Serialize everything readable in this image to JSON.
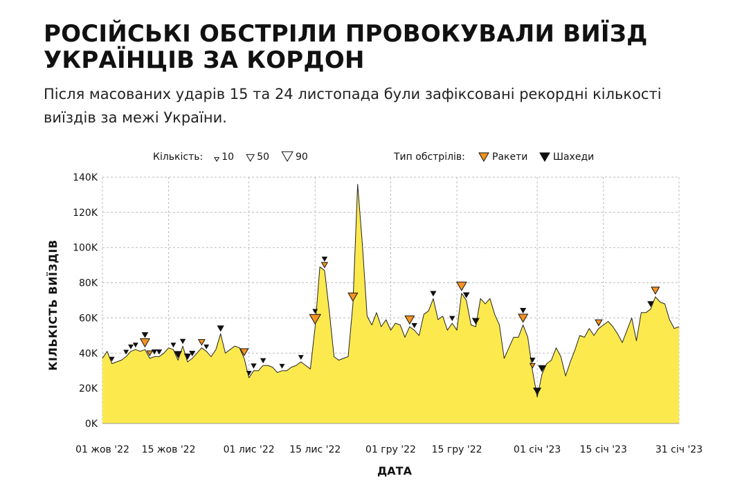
{
  "header": {
    "title": "РОСІЙСЬКІ ОБСТРІЛИ ПРОВОКУВАЛИ ВИЇЗД УКРАЇНЦІВ ЗА КОРДОН",
    "subtitle": "Після масованих ударів 15 та 24 листопада були зафіксовані рекордні кількості виїздів за межі України."
  },
  "legend": {
    "size_label": "Кількість:",
    "size_items": [
      {
        "label": "10",
        "value": 10
      },
      {
        "label": "50",
        "value": 50
      },
      {
        "label": "90",
        "value": 90
      }
    ],
    "type_label": "Тип обстрілів:",
    "type_items": [
      {
        "label": "Ракети",
        "key": "missiles"
      },
      {
        "label": "Шахеди",
        "key": "shaheds"
      }
    ]
  },
  "colors": {
    "area_fill": "#fce94e",
    "area_line": "#222222",
    "grid": "#bbbbbb",
    "missiles": "#f29322",
    "shaheds": "#111111",
    "marker_stroke": "#111111",
    "text": "#111111"
  },
  "chart_data": {
    "type": "area",
    "title": "",
    "xlabel": "ДАТА",
    "ylabel": "КІЛЬКІСТЬ ВИЇЗДІВ",
    "ylim": [
      0,
      140000
    ],
    "yticks": [
      0,
      20000,
      40000,
      60000,
      80000,
      100000,
      120000,
      140000
    ],
    "ytick_labels": [
      "0K",
      "20K",
      "40K",
      "60K",
      "80K",
      "100K",
      "120K",
      "140K"
    ],
    "xlim": [
      "2022-10-01",
      "2023-01-31"
    ],
    "xticks": [
      "2022-10-01",
      "2022-10-15",
      "2022-11-01",
      "2022-11-15",
      "2022-12-01",
      "2022-12-15",
      "2023-01-01",
      "2023-01-15",
      "2023-01-31"
    ],
    "xtick_labels": [
      "01 жов '22",
      "15 жов '22",
      "01 лис '22",
      "15 лис '22",
      "01 гру '22",
      "15 гру '22",
      "01 січ '23",
      "15 січ '23",
      "31 січ '23"
    ],
    "grid": true,
    "series": [
      {
        "points": [
          [
            "2022-10-01",
            37000
          ],
          [
            "2022-10-02",
            41000
          ],
          [
            "2022-10-03",
            34000
          ],
          [
            "2022-10-04",
            35000
          ],
          [
            "2022-10-05",
            36000
          ],
          [
            "2022-10-06",
            38000
          ],
          [
            "2022-10-07",
            41000
          ],
          [
            "2022-10-08",
            42000
          ],
          [
            "2022-10-09",
            41000
          ],
          [
            "2022-10-10",
            42000
          ],
          [
            "2022-10-11",
            37000
          ],
          [
            "2022-10-12",
            38000
          ],
          [
            "2022-10-13",
            38000
          ],
          [
            "2022-10-14",
            40000
          ],
          [
            "2022-10-15",
            43000
          ],
          [
            "2022-10-16",
            42000
          ],
          [
            "2022-10-17",
            36000
          ],
          [
            "2022-10-18",
            44000
          ],
          [
            "2022-10-19",
            35000
          ],
          [
            "2022-10-20",
            37000
          ],
          [
            "2022-10-21",
            40000
          ],
          [
            "2022-10-22",
            43000
          ],
          [
            "2022-10-23",
            41000
          ],
          [
            "2022-10-24",
            38000
          ],
          [
            "2022-10-25",
            42000
          ],
          [
            "2022-10-26",
            51000
          ],
          [
            "2022-10-27",
            40000
          ],
          [
            "2022-10-28",
            42000
          ],
          [
            "2022-10-29",
            44000
          ],
          [
            "2022-10-30",
            43000
          ],
          [
            "2022-10-31",
            37000
          ],
          [
            "2022-11-01",
            26000
          ],
          [
            "2022-11-02",
            30000
          ],
          [
            "2022-11-03",
            30000
          ],
          [
            "2022-11-04",
            33000
          ],
          [
            "2022-11-05",
            33000
          ],
          [
            "2022-11-06",
            32000
          ],
          [
            "2022-11-07",
            29000
          ],
          [
            "2022-11-08",
            30000
          ],
          [
            "2022-11-09",
            30000
          ],
          [
            "2022-11-10",
            32000
          ],
          [
            "2022-11-11",
            33000
          ],
          [
            "2022-11-12",
            35000
          ],
          [
            "2022-11-13",
            33000
          ],
          [
            "2022-11-14",
            31000
          ],
          [
            "2022-11-15",
            55000
          ],
          [
            "2022-11-16",
            89000
          ],
          [
            "2022-11-17",
            87000
          ],
          [
            "2022-11-18",
            64000
          ],
          [
            "2022-11-19",
            38000
          ],
          [
            "2022-11-20",
            36000
          ],
          [
            "2022-11-21",
            37000
          ],
          [
            "2022-11-22",
            38000
          ],
          [
            "2022-11-23",
            68000
          ],
          [
            "2022-11-24",
            136000
          ],
          [
            "2022-11-25",
            102000
          ],
          [
            "2022-11-26",
            61000
          ],
          [
            "2022-11-27",
            56000
          ],
          [
            "2022-11-28",
            63000
          ],
          [
            "2022-11-29",
            55000
          ],
          [
            "2022-11-30",
            59000
          ],
          [
            "2022-12-01",
            53000
          ],
          [
            "2022-12-02",
            57000
          ],
          [
            "2022-12-03",
            56000
          ],
          [
            "2022-12-04",
            49000
          ],
          [
            "2022-12-05",
            55000
          ],
          [
            "2022-12-06",
            53000
          ],
          [
            "2022-12-07",
            50000
          ],
          [
            "2022-12-08",
            62000
          ],
          [
            "2022-12-09",
            64000
          ],
          [
            "2022-12-10",
            71000
          ],
          [
            "2022-12-11",
            59000
          ],
          [
            "2022-12-12",
            61000
          ],
          [
            "2022-12-13",
            53000
          ],
          [
            "2022-12-14",
            57000
          ],
          [
            "2022-12-15",
            53000
          ],
          [
            "2022-12-16",
            74000
          ],
          [
            "2022-12-17",
            70000
          ],
          [
            "2022-12-18",
            56000
          ],
          [
            "2022-12-19",
            55000
          ],
          [
            "2022-12-20",
            71000
          ],
          [
            "2022-12-21",
            68000
          ],
          [
            "2022-12-22",
            71000
          ],
          [
            "2022-12-23",
            62000
          ],
          [
            "2022-12-24",
            56000
          ],
          [
            "2022-12-25",
            37000
          ],
          [
            "2022-12-26",
            43000
          ],
          [
            "2022-12-27",
            49000
          ],
          [
            "2022-12-28",
            49000
          ],
          [
            "2022-12-29",
            56000
          ],
          [
            "2022-12-30",
            49000
          ],
          [
            "2022-12-31",
            30000
          ],
          [
            "2023-01-01",
            15000
          ],
          [
            "2023-01-02",
            28000
          ],
          [
            "2023-01-03",
            34000
          ],
          [
            "2023-01-04",
            36000
          ],
          [
            "2023-01-05",
            43000
          ],
          [
            "2023-01-06",
            38000
          ],
          [
            "2023-01-07",
            27000
          ],
          [
            "2023-01-08",
            35000
          ],
          [
            "2023-01-09",
            42000
          ],
          [
            "2023-01-10",
            50000
          ],
          [
            "2023-01-11",
            49000
          ],
          [
            "2023-01-12",
            54000
          ],
          [
            "2023-01-13",
            50000
          ],
          [
            "2023-01-14",
            54000
          ],
          [
            "2023-01-15",
            56000
          ],
          [
            "2023-01-16",
            58000
          ],
          [
            "2023-01-17",
            55000
          ],
          [
            "2023-01-18",
            51000
          ],
          [
            "2023-01-19",
            46000
          ],
          [
            "2023-01-20",
            53000
          ],
          [
            "2023-01-21",
            60000
          ],
          [
            "2023-01-22",
            47000
          ],
          [
            "2023-01-23",
            63000
          ],
          [
            "2023-01-24",
            63000
          ],
          [
            "2023-01-25",
            65000
          ],
          [
            "2023-01-26",
            72000
          ],
          [
            "2023-01-27",
            69000
          ],
          [
            "2023-01-28",
            68000
          ],
          [
            "2023-01-29",
            59000
          ],
          [
            "2023-01-30",
            54000
          ],
          [
            "2023-01-31",
            55000
          ]
        ]
      }
    ],
    "attacks": [
      {
        "date": "2022-10-03",
        "type": "shaheds",
        "count": 10
      },
      {
        "date": "2022-10-06",
        "type": "shaheds",
        "count": 10
      },
      {
        "date": "2022-10-07",
        "type": "shaheds",
        "count": 10
      },
      {
        "date": "2022-10-08",
        "type": "shaheds",
        "count": 10
      },
      {
        "date": "2022-10-10",
        "type": "missiles",
        "count": 70
      },
      {
        "date": "2022-10-10",
        "type": "shaheds",
        "count": 25
      },
      {
        "date": "2022-10-11",
        "type": "missiles",
        "count": 25
      },
      {
        "date": "2022-10-12",
        "type": "shaheds",
        "count": 15
      },
      {
        "date": "2022-10-13",
        "type": "shaheds",
        "count": 15
      },
      {
        "date": "2022-10-16",
        "type": "shaheds",
        "count": 10
      },
      {
        "date": "2022-10-17",
        "type": "shaheds",
        "count": 40
      },
      {
        "date": "2022-10-18",
        "type": "shaheds",
        "count": 15
      },
      {
        "date": "2022-10-19",
        "type": "shaheds",
        "count": 30
      },
      {
        "date": "2022-10-20",
        "type": "shaheds",
        "count": 20
      },
      {
        "date": "2022-10-22",
        "type": "missiles",
        "count": 35
      },
      {
        "date": "2022-10-23",
        "type": "shaheds",
        "count": 10
      },
      {
        "date": "2022-10-26",
        "type": "shaheds",
        "count": 30
      },
      {
        "date": "2022-10-31",
        "type": "missiles",
        "count": 55
      },
      {
        "date": "2022-11-01",
        "type": "shaheds",
        "count": 10
      },
      {
        "date": "2022-11-02",
        "type": "shaheds",
        "count": 15
      },
      {
        "date": "2022-11-04",
        "type": "shaheds",
        "count": 15
      },
      {
        "date": "2022-11-08",
        "type": "shaheds",
        "count": 10
      },
      {
        "date": "2022-11-12",
        "type": "shaheds",
        "count": 10
      },
      {
        "date": "2022-11-15",
        "type": "missiles",
        "count": 90
      },
      {
        "date": "2022-11-15",
        "type": "shaheds",
        "count": 10
      },
      {
        "date": "2022-11-17",
        "type": "missiles",
        "count": 30
      },
      {
        "date": "2022-11-17",
        "type": "shaheds",
        "count": 15
      },
      {
        "date": "2022-11-23",
        "type": "missiles",
        "count": 70
      },
      {
        "date": "2022-12-05",
        "type": "missiles",
        "count": 70
      },
      {
        "date": "2022-12-06",
        "type": "shaheds",
        "count": 15
      },
      {
        "date": "2022-12-10",
        "type": "shaheds",
        "count": 20
      },
      {
        "date": "2022-12-14",
        "type": "shaheds",
        "count": 15
      },
      {
        "date": "2022-12-16",
        "type": "missiles",
        "count": 75
      },
      {
        "date": "2022-12-17",
        "type": "shaheds",
        "count": 25
      },
      {
        "date": "2022-12-19",
        "type": "shaheds",
        "count": 35
      },
      {
        "date": "2022-12-29",
        "type": "missiles",
        "count": 70
      },
      {
        "date": "2022-12-29",
        "type": "shaheds",
        "count": 20
      },
      {
        "date": "2022-12-31",
        "type": "shaheds",
        "count": 15
      },
      {
        "date": "2022-12-31",
        "type": "missiles",
        "count": 20
      },
      {
        "date": "2023-01-01",
        "type": "shaheds",
        "count": 45
      },
      {
        "date": "2023-01-02",
        "type": "shaheds",
        "count": 40
      },
      {
        "date": "2023-01-14",
        "type": "missiles",
        "count": 40
      },
      {
        "date": "2023-01-25",
        "type": "shaheds",
        "count": 25
      },
      {
        "date": "2023-01-26",
        "type": "missiles",
        "count": 55
      }
    ]
  }
}
